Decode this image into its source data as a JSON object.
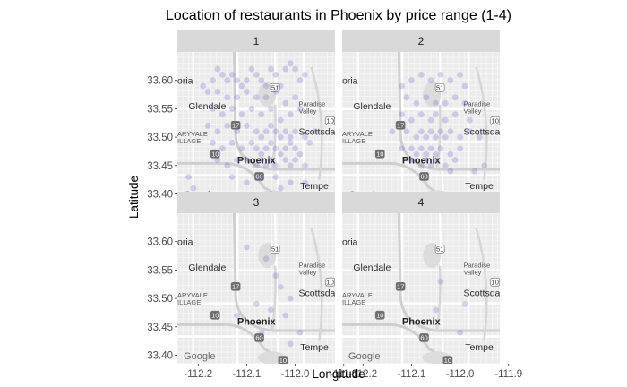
{
  "chart_data": {
    "type": "scatter",
    "title": "Location of restaurants in Phoenix by price range (1-4)",
    "xlabel": "Longitude",
    "ylabel": "Latitude",
    "xlim": [
      -112.243,
      -111.918
    ],
    "ylim": [
      33.385,
      33.65
    ],
    "x_ticks": [
      -112.2,
      -112.1,
      -112.0,
      -111.9
    ],
    "x_tick_labels": [
      "-112.2",
      "-112.1",
      "-112.0",
      "-111.9"
    ],
    "y_ticks": [
      33.4,
      33.45,
      33.5,
      33.55,
      33.6
    ],
    "y_tick_labels": [
      "33.40",
      "33.45",
      "33.50",
      "33.55",
      "33.60"
    ],
    "point_color": "#6a5acd",
    "point_alpha": 0.25,
    "panel_background": "#ebebeb",
    "strip_color": "#d9d9d9",
    "map_labels": {
      "glendale": "Glendale",
      "paradise_valley": "Paradise\nValley",
      "scottsdale": "Scottsdal",
      "phoenix": "Phoenix",
      "tempe": "Tempe",
      "oria": "oria",
      "maryvale": "ARYVALE\nILLAGE",
      "google": "Google",
      "hwy_17": "17",
      "hwy_51": "51",
      "hwy_10a": "10",
      "hwy_10b": "10",
      "hwy_60": "60",
      "hwy_101": "10"
    },
    "facets": [
      {
        "label": "1",
        "points": [
          [
            -112.19,
            33.59
          ],
          [
            -112.18,
            33.58
          ],
          [
            -112.17,
            33.6
          ],
          [
            -112.16,
            33.62
          ],
          [
            -112.15,
            33.61
          ],
          [
            -112.14,
            33.6
          ],
          [
            -112.13,
            33.61
          ],
          [
            -112.12,
            33.6
          ],
          [
            -112.11,
            33.59
          ],
          [
            -112.1,
            33.6
          ],
          [
            -112.09,
            33.62
          ],
          [
            -112.08,
            33.61
          ],
          [
            -112.07,
            33.6
          ],
          [
            -112.06,
            33.59
          ],
          [
            -112.05,
            33.62
          ],
          [
            -112.04,
            33.61
          ],
          [
            -112.03,
            33.59
          ],
          [
            -112.02,
            33.62
          ],
          [
            -112.01,
            33.63
          ],
          [
            -112.0,
            33.62
          ],
          [
            -111.99,
            33.6
          ],
          [
            -111.98,
            33.61
          ],
          [
            -112.16,
            33.58
          ],
          [
            -112.14,
            33.57
          ],
          [
            -112.12,
            33.57
          ],
          [
            -112.1,
            33.58
          ],
          [
            -112.08,
            33.57
          ],
          [
            -112.06,
            33.57
          ],
          [
            -112.04,
            33.58
          ],
          [
            -112.02,
            33.56
          ],
          [
            -112.0,
            33.57
          ],
          [
            -112.17,
            33.55
          ],
          [
            -112.15,
            33.54
          ],
          [
            -112.13,
            33.55
          ],
          [
            -112.11,
            33.54
          ],
          [
            -112.09,
            33.55
          ],
          [
            -112.07,
            33.54
          ],
          [
            -112.05,
            33.55
          ],
          [
            -112.03,
            33.53
          ],
          [
            -112.01,
            33.54
          ],
          [
            -111.99,
            33.55
          ],
          [
            -112.18,
            33.52
          ],
          [
            -112.16,
            33.51
          ],
          [
            -112.14,
            33.52
          ],
          [
            -112.12,
            33.51
          ],
          [
            -112.1,
            33.52
          ],
          [
            -112.08,
            33.51
          ],
          [
            -112.07,
            33.5
          ],
          [
            -112.06,
            33.51
          ],
          [
            -112.05,
            33.52
          ],
          [
            -112.04,
            33.51
          ],
          [
            -112.03,
            33.5
          ],
          [
            -112.02,
            33.51
          ],
          [
            -112.01,
            33.5
          ],
          [
            -112.0,
            33.51
          ],
          [
            -111.98,
            33.5
          ],
          [
            -111.96,
            33.51
          ],
          [
            -112.17,
            33.49
          ],
          [
            -112.15,
            33.48
          ],
          [
            -112.13,
            33.49
          ],
          [
            -112.11,
            33.48
          ],
          [
            -112.09,
            33.49
          ],
          [
            -112.08,
            33.48
          ],
          [
            -112.07,
            33.47
          ],
          [
            -112.06,
            33.48
          ],
          [
            -112.05,
            33.49
          ],
          [
            -112.04,
            33.48
          ],
          [
            -112.03,
            33.47
          ],
          [
            -112.02,
            33.48
          ],
          [
            -112.01,
            33.49
          ],
          [
            -112.0,
            33.48
          ],
          [
            -111.99,
            33.47
          ],
          [
            -111.97,
            33.49
          ],
          [
            -112.16,
            33.46
          ],
          [
            -112.14,
            33.45
          ],
          [
            -112.12,
            33.46
          ],
          [
            -112.1,
            33.46
          ],
          [
            -112.08,
            33.45
          ],
          [
            -112.07,
            33.46
          ],
          [
            -112.06,
            33.45
          ],
          [
            -112.05,
            33.46
          ],
          [
            -112.04,
            33.45
          ],
          [
            -112.02,
            33.46
          ],
          [
            -112.01,
            33.45
          ],
          [
            -112.0,
            33.46
          ],
          [
            -111.98,
            33.45
          ],
          [
            -112.13,
            33.43
          ],
          [
            -112.1,
            33.42
          ],
          [
            -112.07,
            33.43
          ],
          [
            -112.04,
            33.43
          ],
          [
            -112.01,
            33.42
          ],
          [
            -111.98,
            33.42
          ],
          [
            -112.22,
            33.43
          ],
          [
            -112.21,
            33.41
          ],
          [
            -112.05,
            33.4
          ],
          [
            -112.03,
            33.41
          ]
        ]
      },
      {
        "label": "2",
        "points": [
          [
            -112.1,
            33.6
          ],
          [
            -112.08,
            33.61
          ],
          [
            -112.06,
            33.6
          ],
          [
            -112.04,
            33.61
          ],
          [
            -112.02,
            33.6
          ],
          [
            -112.0,
            33.61
          ],
          [
            -111.99,
            33.59
          ],
          [
            -112.12,
            33.59
          ],
          [
            -112.11,
            33.57
          ],
          [
            -112.09,
            33.56
          ],
          [
            -112.07,
            33.57
          ],
          [
            -112.05,
            33.56
          ],
          [
            -112.03,
            33.56
          ],
          [
            -112.01,
            33.57
          ],
          [
            -111.99,
            33.56
          ],
          [
            -112.12,
            33.54
          ],
          [
            -112.1,
            33.53
          ],
          [
            -112.08,
            33.54
          ],
          [
            -112.06,
            33.53
          ],
          [
            -112.05,
            33.54
          ],
          [
            -112.03,
            33.53
          ],
          [
            -112.01,
            33.54
          ],
          [
            -111.98,
            33.53
          ],
          [
            -112.14,
            33.51
          ],
          [
            -112.11,
            33.51
          ],
          [
            -112.09,
            33.5
          ],
          [
            -112.08,
            33.51
          ],
          [
            -112.07,
            33.5
          ],
          [
            -112.06,
            33.51
          ],
          [
            -112.05,
            33.5
          ],
          [
            -112.04,
            33.51
          ],
          [
            -112.03,
            33.5
          ],
          [
            -112.02,
            33.51
          ],
          [
            -112.0,
            33.5
          ],
          [
            -111.98,
            33.51
          ],
          [
            -111.96,
            33.5
          ],
          [
            -112.12,
            33.48
          ],
          [
            -112.1,
            33.48
          ],
          [
            -112.09,
            33.47
          ],
          [
            -112.08,
            33.48
          ],
          [
            -112.07,
            33.47
          ],
          [
            -112.06,
            33.48
          ],
          [
            -112.05,
            33.47
          ],
          [
            -112.04,
            33.48
          ],
          [
            -112.02,
            33.47
          ],
          [
            -112.0,
            33.48
          ],
          [
            -112.1,
            33.46
          ],
          [
            -112.08,
            33.45
          ],
          [
            -112.07,
            33.46
          ],
          [
            -112.06,
            33.45
          ],
          [
            -112.05,
            33.46
          ],
          [
            -112.03,
            33.45
          ],
          [
            -112.01,
            33.46
          ],
          [
            -112.02,
            33.44
          ],
          [
            -111.97,
            33.44
          ],
          [
            -111.95,
            33.45
          ]
        ]
      },
      {
        "label": "3",
        "points": [
          [
            -112.1,
            33.59
          ],
          [
            -112.06,
            33.57
          ],
          [
            -112.04,
            33.54
          ],
          [
            -112.03,
            33.52
          ],
          [
            -112.01,
            33.5
          ],
          [
            -112.08,
            33.49
          ],
          [
            -112.05,
            33.48
          ],
          [
            -112.02,
            33.47
          ],
          [
            -112.12,
            33.47
          ],
          [
            -112.07,
            33.44
          ],
          [
            -111.99,
            33.44
          ],
          [
            -112.01,
            33.42
          ]
        ]
      },
      {
        "label": "4",
        "points": [
          [
            -112.04,
            33.53
          ],
          [
            -112.05,
            33.48
          ],
          [
            -111.99,
            33.49
          ],
          [
            -112.0,
            33.44
          ]
        ]
      }
    ]
  }
}
